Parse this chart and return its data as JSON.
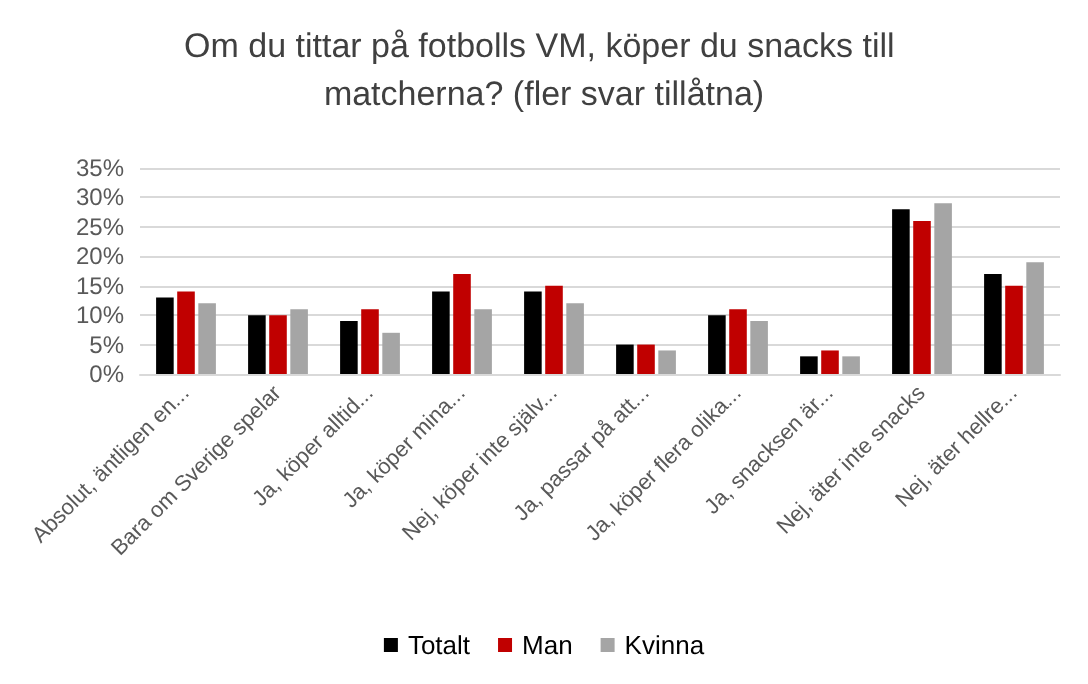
{
  "chart_data": {
    "type": "bar",
    "title": "Om du tittar på fotbolls VM, köper du snacks till matcherna? (fler svar tillåtna)",
    "categories": [
      "Absolut, äntligen en...",
      "Bara om Sverige spelar",
      "Ja, köper alltid...",
      "Ja, köper mina...",
      "Nej, köper inte själv...",
      "Ja, passar på att...",
      "Ja, köper flera olika...",
      "Ja, snacksen är...",
      "Nej, äter inte snacks",
      "Nej, äter hellre..."
    ],
    "series": [
      {
        "name": "Totalt",
        "color": "#000000",
        "values": [
          13,
          10,
          9,
          14,
          14,
          5,
          10,
          3,
          28,
          17
        ]
      },
      {
        "name": "Man",
        "color": "#c00000",
        "values": [
          14,
          10,
          11,
          17,
          15,
          5,
          11,
          4,
          26,
          15
        ]
      },
      {
        "name": "Kvinna",
        "color": "#a5a5a5",
        "values": [
          12,
          11,
          7,
          11,
          12,
          4,
          9,
          3,
          29,
          19
        ]
      }
    ],
    "ylim": [
      0,
      35
    ],
    "yticks": [
      {
        "value": 0,
        "label": "0%"
      },
      {
        "value": 5,
        "label": "5%"
      },
      {
        "value": 10,
        "label": "10%"
      },
      {
        "value": 15,
        "label": "15%"
      },
      {
        "value": 20,
        "label": "20%"
      },
      {
        "value": 25,
        "label": "25%"
      },
      {
        "value": 30,
        "label": "30%"
      },
      {
        "value": 35,
        "label": "35%"
      }
    ],
    "grid": "y",
    "legend": "bottom"
  }
}
